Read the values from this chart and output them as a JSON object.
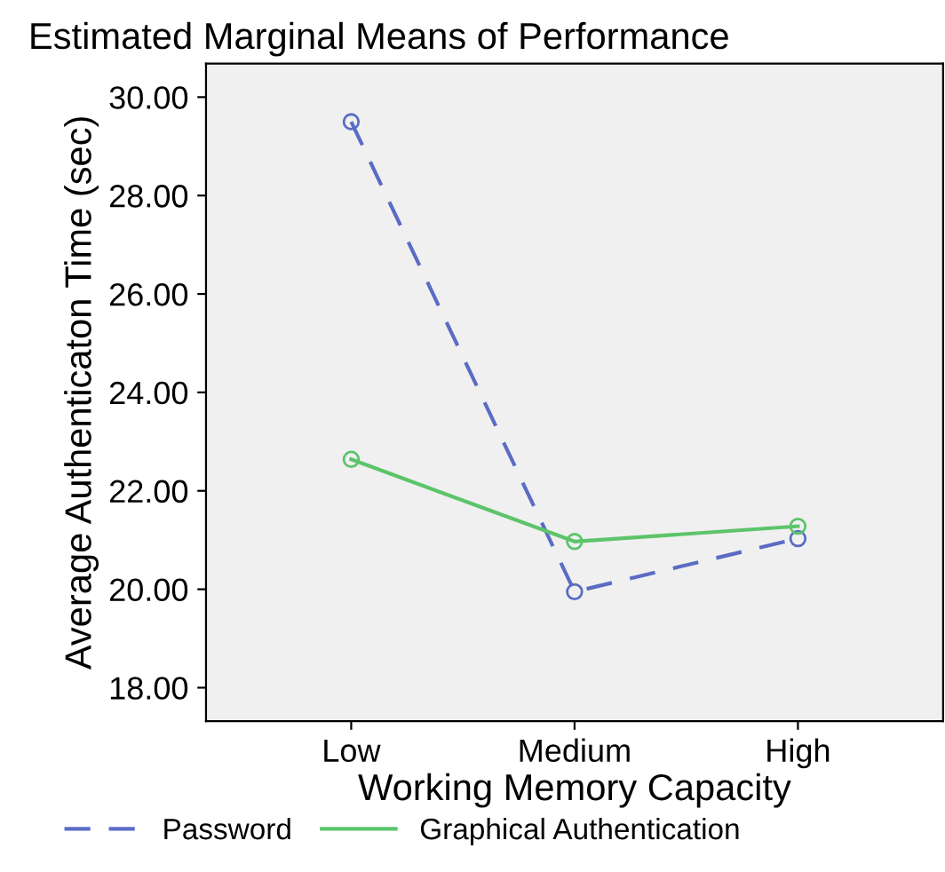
{
  "chart_data": {
    "type": "line",
    "title": "Estimated Marginal Means of Performance",
    "xlabel": "Working Memory Capacity",
    "ylabel": "Average Authenticaton Time (sec)",
    "categories": [
      "Low",
      "Medium",
      "High"
    ],
    "series": [
      {
        "name": "Password",
        "color": "#5b6cc4",
        "values": [
          29.5,
          19.95,
          21.03
        ],
        "line_style": "dashed"
      },
      {
        "name": "Graphical Authentication",
        "color": "#5cc46a",
        "values": [
          22.64,
          20.97,
          21.28
        ],
        "line_style": "solid"
      }
    ],
    "ylim": [
      17.32,
      30.68
    ],
    "yticks": [
      {
        "value": 18,
        "label": "18.00"
      },
      {
        "value": 20,
        "label": "20.00"
      },
      {
        "value": 22,
        "label": "22.00"
      },
      {
        "value": 24,
        "label": "24.00"
      },
      {
        "value": 26,
        "label": "26.00"
      },
      {
        "value": 28,
        "label": "28.00"
      },
      {
        "value": 30,
        "label": "30.00"
      }
    ],
    "marker": "circle",
    "legend": "bottom",
    "grid": false
  }
}
